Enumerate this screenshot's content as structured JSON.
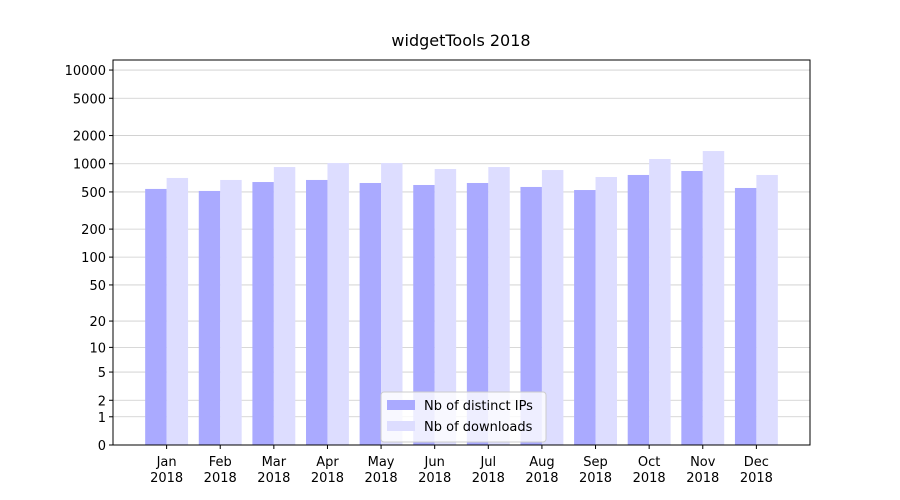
{
  "chart_data": {
    "type": "bar",
    "title": "widgetTools 2018",
    "categories": [
      "Jan 2018",
      "Feb 2018",
      "Mar 2018",
      "Apr 2018",
      "May 2018",
      "Jun 2018",
      "Jul 2018",
      "Aug 2018",
      "Sep 2018",
      "Oct 2018",
      "Nov 2018",
      "Dec 2018"
    ],
    "series": [
      {
        "name": "Nb of distinct IPs",
        "color": "#aaaaff",
        "values": [
          538,
          512,
          638,
          671,
          623,
          593,
          623,
          565,
          524,
          759,
          837,
          551
        ]
      },
      {
        "name": "Nb of downloads",
        "color": "#ddddff",
        "values": [
          705,
          671,
          922,
          1018,
          1018,
          879,
          922,
          857,
          722,
          1124,
          1367,
          759
        ]
      }
    ],
    "yscale": "log1p",
    "ylim": [
      0,
      12800
    ],
    "yticks": [
      0,
      1,
      2,
      5,
      10,
      20,
      50,
      100,
      200,
      500,
      1000,
      2000,
      5000,
      10000
    ],
    "grid": true,
    "legend": "lower center"
  }
}
